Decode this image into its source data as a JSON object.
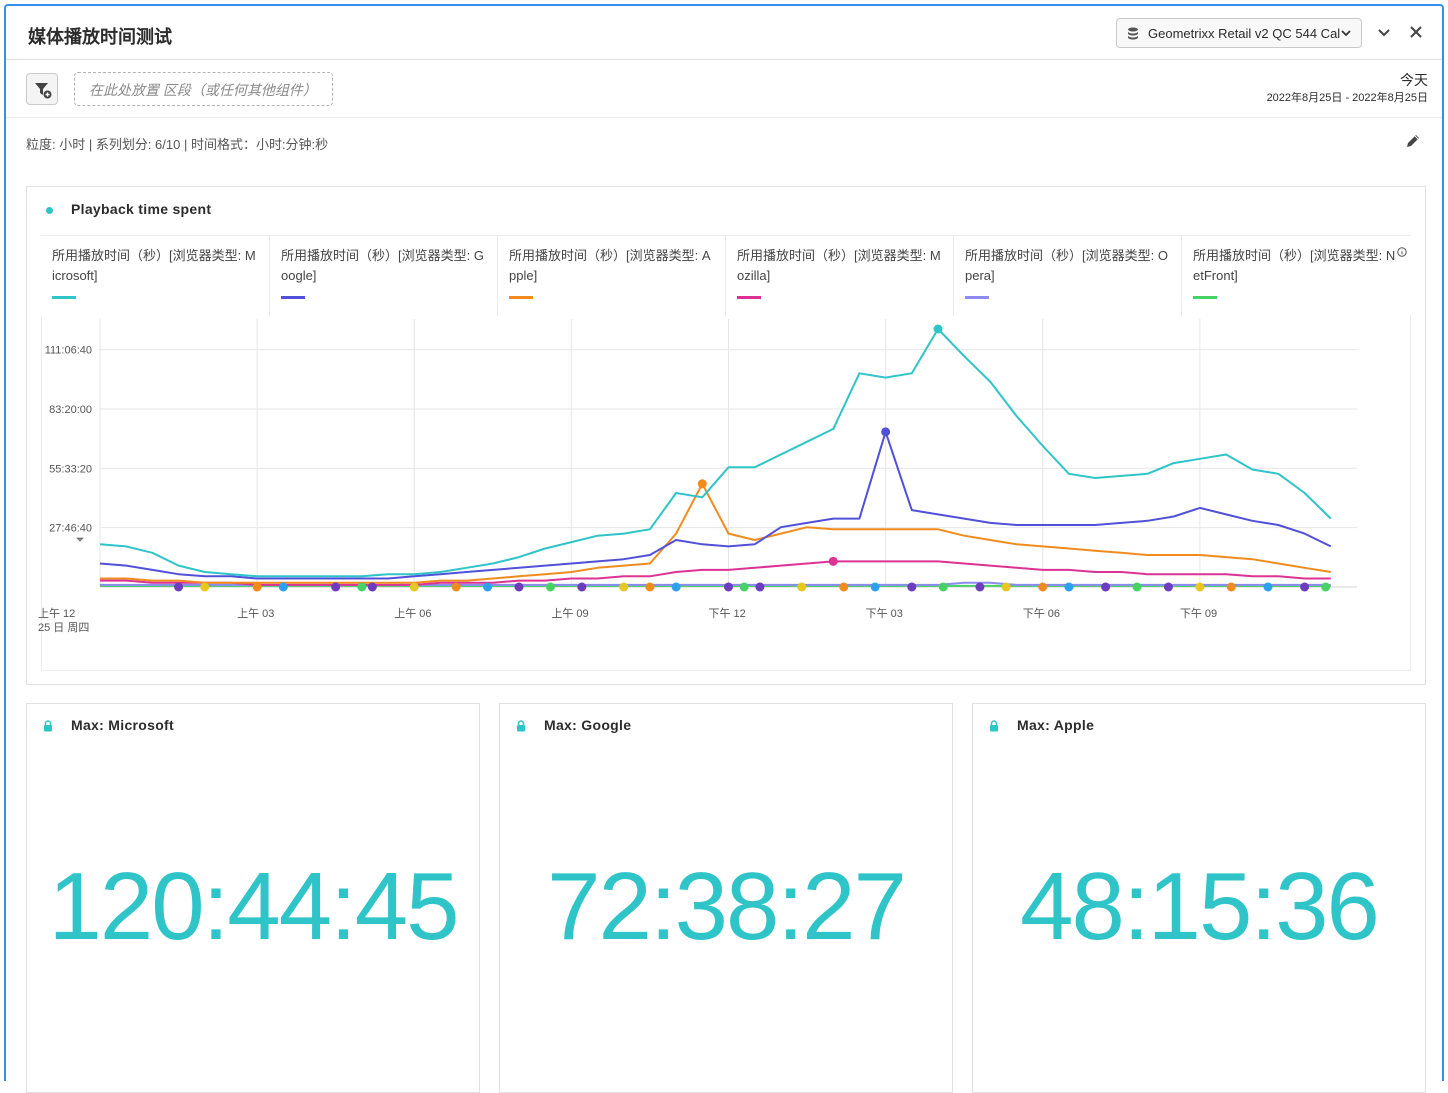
{
  "header": {
    "title": "媒体播放时间测试",
    "report_suite": "Geometrixx Retail v2 QC 544 Cal"
  },
  "segment_bar": {
    "drop_zone_placeholder": "在此处放置 区段（或任何其他组件）",
    "date_label": "今天",
    "date_range": "2022年8月25日 - 2022年8月25日"
  },
  "settings": {
    "summary": "粒度: 小时 | 系列划分: 6/10 | 时间格式：小时:分钟:秒"
  },
  "chart_panel": {
    "title": "Playback time spent",
    "legend": [
      {
        "label": "所用播放时间（秒）[浏览器类型: Microsoft]",
        "color": "#2ec4c8"
      },
      {
        "label": "所用播放时间（秒）[浏览器类型: Google]",
        "color": "#5050d8"
      },
      {
        "label": "所用播放时间（秒）[浏览器类型: Apple]",
        "color": "#f08c1e"
      },
      {
        "label": "所用播放时间（秒）[浏览器类型: Mozilla]",
        "color": "#dc3294"
      },
      {
        "label": "所用播放时间（秒）[浏览器类型: Opera]",
        "color": "#8c8cf0"
      },
      {
        "label": "所用播放时间（秒）[浏览器类型: NetFront]",
        "color": "#46d264"
      }
    ]
  },
  "chart_data": {
    "type": "line",
    "title": "Playback time spent",
    "xlabel": "",
    "ylabel": "",
    "x_tick_labels": [
      "上午 12",
      "上午 03",
      "上午 06",
      "上午 09",
      "下午 12",
      "下午 03",
      "下午 06",
      "下午 09"
    ],
    "x_tick_sublabel": "25 日 周四",
    "y_tick_labels": [
      "27:46:40",
      "55:33:20",
      "83:20:00",
      "111:06:40"
    ],
    "y_tick_values_hours": [
      27.78,
      55.56,
      83.33,
      111.11
    ],
    "ylim_hours": [
      0,
      120.75
    ],
    "x_hours": [
      0,
      0.5,
      1,
      1.5,
      2,
      2.5,
      3,
      3.5,
      4,
      4.5,
      5,
      5.5,
      6,
      6.5,
      7,
      7.5,
      8,
      8.5,
      9,
      9.5,
      10,
      10.5,
      11,
      11.5,
      12,
      12.5,
      13,
      13.5,
      14,
      14.5,
      15,
      15.5,
      16,
      16.5,
      17,
      17.5,
      18,
      18.5,
      19,
      19.5,
      20,
      20.5,
      21,
      21.5,
      22,
      22.5,
      23,
      23.5
    ],
    "series": [
      {
        "name": "所用播放时间（秒）[浏览器类型: Microsoft]",
        "color": "#2ec4c8",
        "values": [
          20,
          19,
          16,
          10,
          7,
          6,
          5,
          5,
          5,
          5,
          5,
          6,
          6,
          7,
          9,
          11,
          14,
          18,
          21,
          24,
          25,
          27,
          44,
          42,
          56,
          56,
          62,
          68,
          74,
          100,
          98,
          100,
          120.75,
          108,
          96,
          80,
          66,
          53,
          51,
          52,
          53,
          58,
          60,
          62,
          55,
          53,
          44,
          32
        ]
      },
      {
        "name": "所用播放时间（秒）[浏览器类型: Google]",
        "color": "#5050d8",
        "values": [
          11,
          10,
          8,
          6,
          5,
          5,
          4,
          4,
          4,
          4,
          4,
          4,
          5,
          6,
          7,
          8,
          9,
          10,
          11,
          12,
          13,
          15,
          22,
          20,
          19,
          20,
          28,
          30,
          32,
          32,
          72.6,
          36,
          34,
          32,
          30,
          29,
          29,
          29,
          29,
          30,
          31,
          33,
          37,
          34,
          31,
          29,
          25,
          19
        ]
      },
      {
        "name": "所用播放时间（秒）[浏览器类型: Apple]",
        "color": "#f08c1e",
        "values": [
          4,
          4,
          3,
          3,
          2,
          2,
          2,
          2,
          2,
          2,
          2,
          2,
          2,
          3,
          3,
          4,
          5,
          6,
          7,
          9,
          10,
          11,
          25,
          48.3,
          25,
          22,
          25,
          28,
          27,
          27,
          27,
          27,
          27,
          24,
          22,
          20,
          19,
          18,
          17,
          16,
          15,
          15,
          15,
          14,
          13,
          11,
          9,
          7
        ]
      },
      {
        "name": "所用播放时间（秒）[浏览器类型: Mozilla]",
        "color": "#dc3294",
        "values": [
          3,
          3,
          2,
          2,
          2,
          2,
          1,
          1,
          1,
          1,
          1,
          1,
          1,
          2,
          2,
          2,
          3,
          3,
          4,
          4,
          5,
          5,
          7,
          8,
          8,
          9,
          10,
          11,
          12,
          12,
          12,
          12,
          12,
          11,
          10,
          9,
          8,
          8,
          7,
          7,
          6,
          6,
          6,
          6,
          5,
          5,
          4,
          4
        ]
      },
      {
        "name": "所用播放时间（秒）[浏览器类型: Opera]",
        "color": "#8c8cf0",
        "values": [
          1,
          1,
          1,
          1,
          1,
          1,
          1,
          1,
          1,
          1,
          1,
          1,
          1,
          1,
          1,
          1,
          1,
          1,
          1,
          1,
          1,
          1,
          1,
          1,
          1,
          1,
          1,
          1,
          1,
          1,
          1,
          1,
          1,
          2,
          2,
          1,
          1,
          1,
          1,
          1,
          1,
          1,
          1,
          1,
          1,
          1,
          1,
          1
        ]
      },
      {
        "name": "所用播放时间（秒）[浏览器类型: NetFront]",
        "color": "#46d264",
        "values": [
          0.5,
          0.5,
          0.5,
          0.5,
          0.5,
          0.5,
          0.5,
          0.5,
          0.5,
          0.5,
          0.5,
          0.5,
          0.5,
          0.5,
          0.5,
          0.5,
          0.5,
          0.5,
          0.5,
          0.5,
          0.5,
          0.5,
          0.5,
          0.5,
          0.5,
          0.5,
          0.5,
          0.5,
          0.5,
          0.5,
          0.5,
          0.5,
          0.5,
          0.5,
          0.5,
          0.5,
          0.5,
          0.5,
          0.5,
          0.5,
          0.5,
          0.5,
          0.5,
          0.5,
          0.5,
          0.5,
          0.5,
          0.5
        ]
      }
    ],
    "grid": true,
    "legend_position": "top"
  },
  "kpis": [
    {
      "title": "Max: Microsoft",
      "value": "120:44:45"
    },
    {
      "title": "Max: Google",
      "value": "72:38:27"
    },
    {
      "title": "Max: Apple",
      "value": "48:15:36"
    }
  ],
  "icons": {
    "header_dropdown": "chevron-down-icon",
    "header_close": "close-icon",
    "report_suite": "database-icon",
    "filter": "filter-add-icon",
    "edit": "pencil-icon",
    "kpi_lock": "lock-icon",
    "info": "info-icon"
  },
  "colors": {
    "accent": "#378ef0",
    "kpi_value": "#2ec4c8"
  }
}
